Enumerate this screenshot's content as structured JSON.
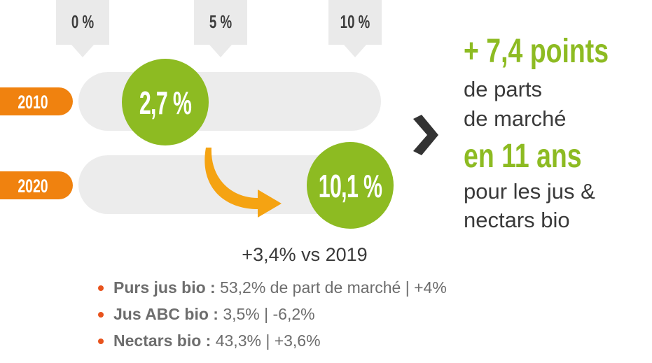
{
  "chart_data": {
    "type": "bubble-track",
    "axis": {
      "ticks": [
        "0 %",
        "5 %",
        "10 %"
      ],
      "tick_values": [
        0,
        5,
        10
      ],
      "range": [
        0,
        10
      ]
    },
    "series": [
      {
        "year": "2010",
        "value": 2.7,
        "label": "2,7 %"
      },
      {
        "year": "2020",
        "value": 10.1,
        "label": "10,1 %"
      }
    ],
    "annotation": "+3,4% vs 2019"
  },
  "summary": {
    "headline": "+ 7,4 points",
    "line1": "de parts",
    "line2": "de marché",
    "highlight": "en 11 ans",
    "line3": "pour les jus &",
    "line4": "nectars bio"
  },
  "details": [
    {
      "name": "Purs jus bio :",
      "value": "53,2% de part de marché | +4%"
    },
    {
      "name": "Jus ABC bio :",
      "value": "3,5% | -6,2%"
    },
    {
      "name": "Nectars bio :",
      "value": "43,3% | +3,6%"
    }
  ],
  "colors": {
    "green": "#8dbb22",
    "orange": "#f0820f",
    "bullet": "#e8531d",
    "track": "#ececec",
    "arrow": "#f5a312",
    "chevron": "#333333"
  },
  "icons": {
    "trend_arrow": "curved-down-right-arrow",
    "chevron": "chevron-right"
  }
}
